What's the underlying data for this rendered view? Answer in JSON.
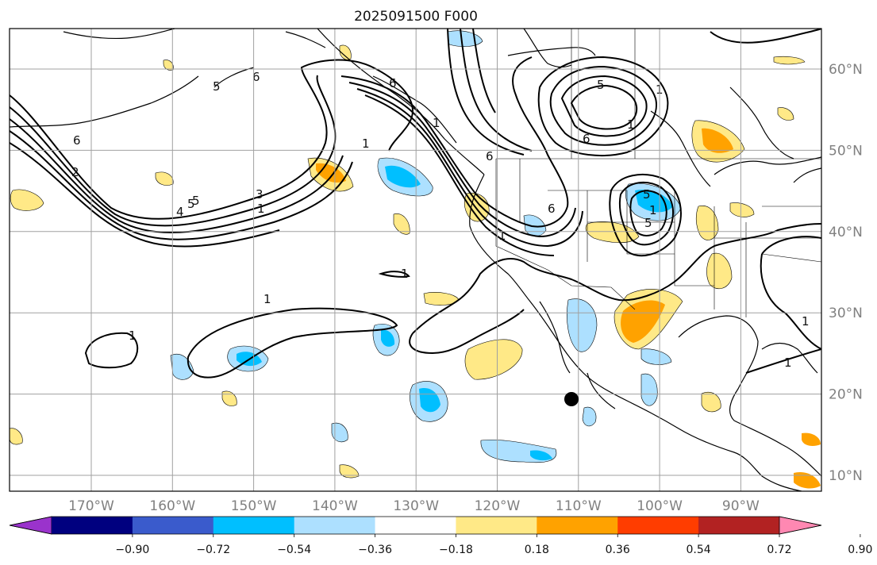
{
  "title": "2025091500 F000",
  "map": {
    "lon_ticks": [
      "170°W",
      "160°W",
      "150°W",
      "140°W",
      "130°W",
      "120°W",
      "110°W",
      "100°W",
      "90°W"
    ],
    "lat_ticks": [
      "60°N",
      "50°N",
      "40°N",
      "30°N",
      "20°N",
      "10°N"
    ],
    "contour_labels": [
      "6",
      "5",
      "1",
      "6",
      "6",
      "1",
      "5",
      "3",
      "1",
      "4",
      "5",
      "2",
      "6",
      "1",
      "1",
      "1",
      "6",
      "5",
      "1",
      "6",
      "5",
      "1",
      "1",
      "5",
      "1",
      "1",
      "1"
    ],
    "marker": "black-dot"
  },
  "colorbar": {
    "labels": [
      "−0.90",
      "−0.72",
      "−0.54",
      "−0.36",
      "−0.18",
      "0.18",
      "0.36",
      "0.54",
      "0.72",
      "0.90"
    ],
    "colors": [
      "#9a33cc",
      "#00007f",
      "#3a5bcc",
      "#00bfff",
      "#ade0ff",
      "#ffffff",
      "#ffe987",
      "#ffa200",
      "#ff3d00",
      "#b22222",
      "#ff88b2"
    ]
  },
  "colors": {
    "contour": "#000000",
    "grid": "#a0a0a0",
    "tick_label": "#808080"
  }
}
